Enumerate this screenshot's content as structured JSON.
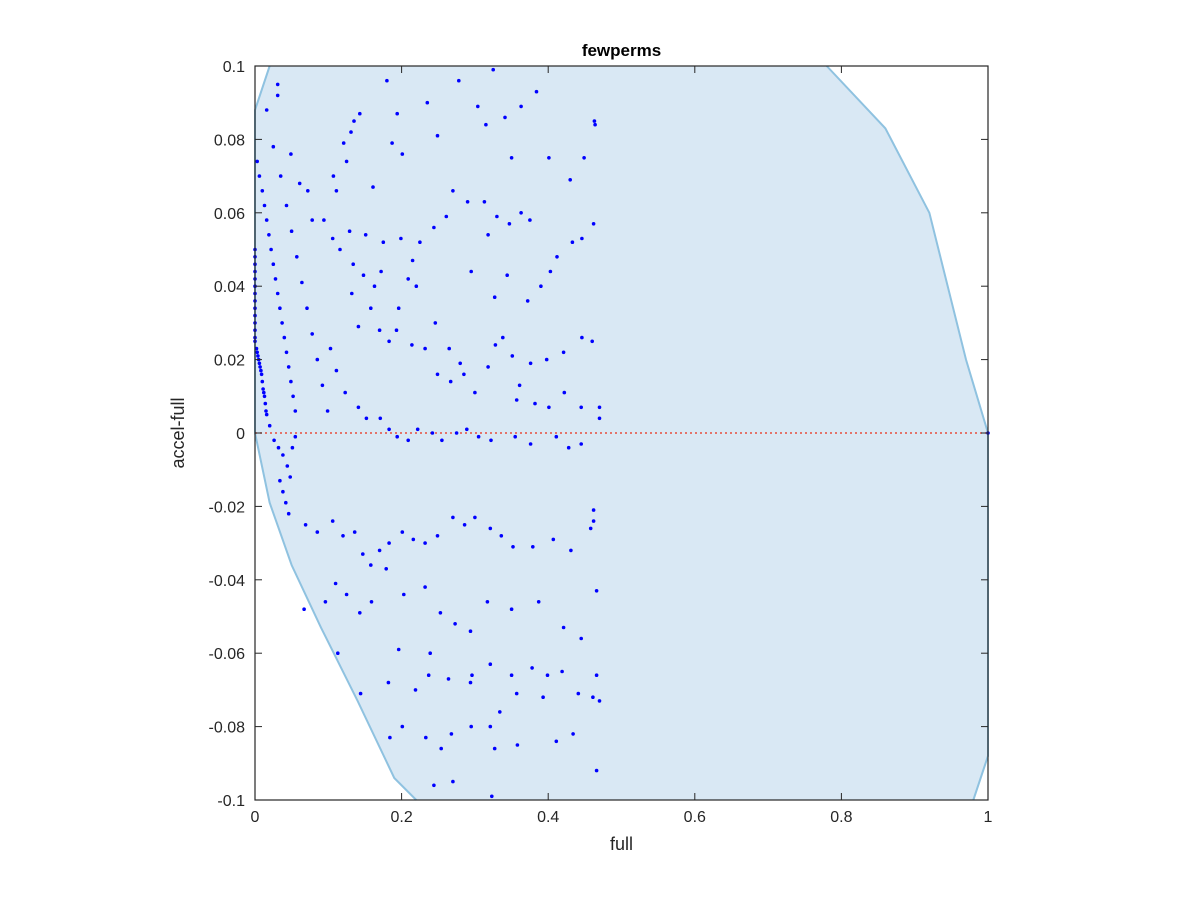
{
  "chart_data": {
    "type": "scatter",
    "title": "fewperms",
    "xlabel": "full",
    "ylabel": "accel-full",
    "xlim": [
      0,
      1
    ],
    "ylim": [
      -0.1,
      0.1
    ],
    "xticks": [
      "0",
      "0.2",
      "0.4",
      "0.6",
      "0.8",
      "1"
    ],
    "xtick_values": [
      0,
      0.2,
      0.4,
      0.6,
      0.8,
      1
    ],
    "yticks": [
      "-0.1",
      "-0.08",
      "-0.06",
      "-0.04",
      "-0.02",
      "0",
      "0.02",
      "0.04",
      "0.06",
      "0.08",
      "0.1"
    ],
    "ytick_values": [
      -0.1,
      -0.08,
      -0.06,
      -0.04,
      -0.02,
      0,
      0.02,
      0.04,
      0.06,
      0.08,
      0.1
    ],
    "grid": false,
    "reference_line": {
      "y": 0,
      "color": "#e74c3c",
      "style": "dotted"
    },
    "region": {
      "fill": "#d9e8f4",
      "edge": "#8fc2e0",
      "left_boundary": [
        [
          0.02,
          0.1
        ],
        [
          0.0,
          0.088
        ],
        [
          0.0,
          0.0
        ],
        [
          0.02,
          -0.019
        ],
        [
          0.05,
          -0.036
        ],
        [
          0.09,
          -0.053
        ],
        [
          0.14,
          -0.073
        ],
        [
          0.19,
          -0.094
        ],
        [
          0.22,
          -0.1
        ]
      ],
      "right_boundary": [
        [
          0.78,
          0.1
        ],
        [
          0.86,
          0.083
        ],
        [
          0.92,
          0.06
        ],
        [
          0.97,
          0.02
        ],
        [
          1.0,
          0.0
        ],
        [
          1.0,
          -0.088
        ],
        [
          0.98,
          -0.1
        ]
      ]
    },
    "point_color": "#0000ff",
    "points": [
      [
        0,
        0.05
      ],
      [
        0,
        0.048
      ],
      [
        0,
        0.046
      ],
      [
        0,
        0.044
      ],
      [
        0,
        0.042
      ],
      [
        0,
        0.04
      ],
      [
        0,
        0.038
      ],
      [
        0,
        0.036
      ],
      [
        0,
        0.034
      ],
      [
        0,
        0.032
      ],
      [
        0,
        0.03
      ],
      [
        0,
        0.028
      ],
      [
        0,
        0.026
      ],
      [
        0,
        0.025
      ],
      [
        0.002,
        0.023
      ],
      [
        0.003,
        0.022
      ],
      [
        0.004,
        0.021
      ],
      [
        0.005,
        0.02
      ],
      [
        0.006,
        0.019
      ],
      [
        0.007,
        0.018
      ],
      [
        0.008,
        0.017
      ],
      [
        0.009,
        0.016
      ],
      [
        0.01,
        0.014
      ],
      [
        0.011,
        0.012
      ],
      [
        0.012,
        0.011
      ],
      [
        0.013,
        0.01
      ],
      [
        0.014,
        0.008
      ],
      [
        0.015,
        0.006
      ],
      [
        0.016,
        0.005
      ],
      [
        0.003,
        0.074
      ],
      [
        0.006,
        0.07
      ],
      [
        0.01,
        0.066
      ],
      [
        0.013,
        0.062
      ],
      [
        0.016,
        0.058
      ],
      [
        0.019,
        0.054
      ],
      [
        0.022,
        0.05
      ],
      [
        0.025,
        0.046
      ],
      [
        0.028,
        0.042
      ],
      [
        0.031,
        0.038
      ],
      [
        0.034,
        0.034
      ],
      [
        0.037,
        0.03
      ],
      [
        0.04,
        0.026
      ],
      [
        0.043,
        0.022
      ],
      [
        0.046,
        0.018
      ],
      [
        0.049,
        0.014
      ],
      [
        0.052,
        0.01
      ],
      [
        0.055,
        0.006
      ],
      [
        0.016,
        0.088
      ],
      [
        0.025,
        0.078
      ],
      [
        0.035,
        0.07
      ],
      [
        0.043,
        0.062
      ],
      [
        0.05,
        0.055
      ],
      [
        0.057,
        0.048
      ],
      [
        0.064,
        0.041
      ],
      [
        0.071,
        0.034
      ],
      [
        0.078,
        0.027
      ],
      [
        0.085,
        0.02
      ],
      [
        0.092,
        0.013
      ],
      [
        0.099,
        0.006
      ],
      [
        0.02,
        0.002
      ],
      [
        0.026,
        -0.002
      ],
      [
        0.032,
        -0.004
      ],
      [
        0.038,
        -0.006
      ],
      [
        0.044,
        -0.009
      ],
      [
        0.048,
        -0.012
      ],
      [
        0.051,
        -0.004
      ],
      [
        0.055,
        -0.001
      ],
      [
        0.034,
        -0.013
      ],
      [
        0.038,
        -0.016
      ],
      [
        0.042,
        -0.019
      ],
      [
        0.046,
        -0.022
      ],
      [
        0.031,
        0.092
      ],
      [
        0.031,
        0.095
      ],
      [
        0.049,
        0.076
      ],
      [
        0.061,
        0.068
      ],
      [
        0.072,
        0.066
      ],
      [
        0.078,
        0.058
      ],
      [
        0.094,
        0.058
      ],
      [
        0.107,
        0.07
      ],
      [
        0.111,
        0.066
      ],
      [
        0.121,
        0.079
      ],
      [
        0.135,
        0.085
      ],
      [
        0.125,
        0.074
      ],
      [
        0.131,
        0.082
      ],
      [
        0.143,
        0.087
      ],
      [
        0.161,
        0.067
      ],
      [
        0.18,
        0.096
      ],
      [
        0.194,
        0.087
      ],
      [
        0.187,
        0.079
      ],
      [
        0.201,
        0.076
      ],
      [
        0.235,
        0.09
      ],
      [
        0.249,
        0.081
      ],
      [
        0.278,
        0.096
      ],
      [
        0.304,
        0.089
      ],
      [
        0.315,
        0.084
      ],
      [
        0.325,
        0.099
      ],
      [
        0.341,
        0.086
      ],
      [
        0.35,
        0.075
      ],
      [
        0.363,
        0.089
      ],
      [
        0.384,
        0.093
      ],
      [
        0.401,
        0.075
      ],
      [
        0.449,
        0.075
      ],
      [
        0.43,
        0.069
      ],
      [
        0.464,
        0.084
      ],
      [
        0.106,
        0.053
      ],
      [
        0.116,
        0.05
      ],
      [
        0.134,
        0.046
      ],
      [
        0.148,
        0.043
      ],
      [
        0.163,
        0.04
      ],
      [
        0.129,
        0.055
      ],
      [
        0.151,
        0.054
      ],
      [
        0.175,
        0.052
      ],
      [
        0.199,
        0.053
      ],
      [
        0.225,
        0.052
      ],
      [
        0.244,
        0.056
      ],
      [
        0.261,
        0.059
      ],
      [
        0.27,
        0.066
      ],
      [
        0.29,
        0.063
      ],
      [
        0.313,
        0.063
      ],
      [
        0.33,
        0.059
      ],
      [
        0.347,
        0.057
      ],
      [
        0.363,
        0.06
      ],
      [
        0.375,
        0.058
      ],
      [
        0.403,
        0.044
      ],
      [
        0.412,
        0.048
      ],
      [
        0.433,
        0.052
      ],
      [
        0.446,
        0.053
      ],
      [
        0.462,
        0.057
      ],
      [
        0.172,
        0.044
      ],
      [
        0.196,
        0.034
      ],
      [
        0.209,
        0.042
      ],
      [
        0.215,
        0.047
      ],
      [
        0.22,
        0.04
      ],
      [
        0.246,
        0.03
      ],
      [
        0.265,
        0.023
      ],
      [
        0.28,
        0.019
      ],
      [
        0.295,
        0.044
      ],
      [
        0.318,
        0.054
      ],
      [
        0.327,
        0.037
      ],
      [
        0.344,
        0.043
      ],
      [
        0.372,
        0.036
      ],
      [
        0.39,
        0.04
      ],
      [
        0.338,
        0.026
      ],
      [
        0.351,
        0.021
      ],
      [
        0.376,
        0.019
      ],
      [
        0.398,
        0.02
      ],
      [
        0.421,
        0.022
      ],
      [
        0.446,
        0.026
      ],
      [
        0.46,
        0.025
      ],
      [
        0.47,
        0.004
      ],
      [
        0.132,
        0.038
      ],
      [
        0.141,
        0.029
      ],
      [
        0.158,
        0.034
      ],
      [
        0.17,
        0.028
      ],
      [
        0.183,
        0.025
      ],
      [
        0.193,
        0.028
      ],
      [
        0.214,
        0.024
      ],
      [
        0.232,
        0.023
      ],
      [
        0.249,
        0.016
      ],
      [
        0.267,
        0.014
      ],
      [
        0.285,
        0.016
      ],
      [
        0.3,
        0.011
      ],
      [
        0.318,
        0.018
      ],
      [
        0.328,
        0.024
      ],
      [
        0.357,
        0.009
      ],
      [
        0.361,
        0.013
      ],
      [
        0.382,
        0.008
      ],
      [
        0.401,
        0.007
      ],
      [
        0.422,
        0.011
      ],
      [
        0.445,
        0.007
      ],
      [
        0.47,
        0.007
      ],
      [
        0.103,
        0.023
      ],
      [
        0.111,
        0.017
      ],
      [
        0.123,
        0.011
      ],
      [
        0.141,
        0.007
      ],
      [
        0.152,
        0.004
      ],
      [
        0.171,
        0.004
      ],
      [
        0.183,
        0.001
      ],
      [
        0.194,
        -0.001
      ],
      [
        0.209,
        -0.002
      ],
      [
        0.222,
        0.001
      ],
      [
        0.242,
        0.0
      ],
      [
        0.255,
        -0.002
      ],
      [
        0.275,
        0.0
      ],
      [
        0.289,
        0.001
      ],
      [
        0.305,
        -0.001
      ],
      [
        0.322,
        -0.002
      ],
      [
        0.355,
        -0.001
      ],
      [
        0.376,
        -0.003
      ],
      [
        0.411,
        -0.001
      ],
      [
        0.428,
        -0.004
      ],
      [
        0.445,
        -0.003
      ],
      [
        0.069,
        -0.025
      ],
      [
        0.085,
        -0.027
      ],
      [
        0.106,
        -0.024
      ],
      [
        0.12,
        -0.028
      ],
      [
        0.136,
        -0.027
      ],
      [
        0.147,
        -0.033
      ],
      [
        0.158,
        -0.036
      ],
      [
        0.17,
        -0.032
      ],
      [
        0.183,
        -0.03
      ],
      [
        0.201,
        -0.027
      ],
      [
        0.216,
        -0.029
      ],
      [
        0.232,
        -0.03
      ],
      [
        0.249,
        -0.028
      ],
      [
        0.27,
        -0.023
      ],
      [
        0.286,
        -0.025
      ],
      [
        0.3,
        -0.023
      ],
      [
        0.321,
        -0.026
      ],
      [
        0.336,
        -0.028
      ],
      [
        0.352,
        -0.031
      ],
      [
        0.379,
        -0.031
      ],
      [
        0.407,
        -0.029
      ],
      [
        0.431,
        -0.032
      ],
      [
        0.458,
        -0.026
      ],
      [
        0.067,
        -0.048
      ],
      [
        0.096,
        -0.046
      ],
      [
        0.11,
        -0.041
      ],
      [
        0.125,
        -0.044
      ],
      [
        0.143,
        -0.049
      ],
      [
        0.159,
        -0.046
      ],
      [
        0.179,
        -0.037
      ],
      [
        0.203,
        -0.044
      ],
      [
        0.232,
        -0.042
      ],
      [
        0.253,
        -0.049
      ],
      [
        0.273,
        -0.052
      ],
      [
        0.294,
        -0.054
      ],
      [
        0.317,
        -0.046
      ],
      [
        0.35,
        -0.048
      ],
      [
        0.387,
        -0.046
      ],
      [
        0.421,
        -0.053
      ],
      [
        0.445,
        -0.056
      ],
      [
        0.466,
        -0.043
      ],
      [
        0.113,
        -0.06
      ],
      [
        0.196,
        -0.059
      ],
      [
        0.239,
        -0.06
      ],
      [
        0.294,
        -0.068
      ],
      [
        0.321,
        -0.063
      ],
      [
        0.35,
        -0.066
      ],
      [
        0.378,
        -0.064
      ],
      [
        0.399,
        -0.066
      ],
      [
        0.419,
        -0.065
      ],
      [
        0.466,
        -0.066
      ],
      [
        0.47,
        -0.073
      ],
      [
        0.144,
        -0.071
      ],
      [
        0.182,
        -0.068
      ],
      [
        0.219,
        -0.07
      ],
      [
        0.237,
        -0.066
      ],
      [
        0.264,
        -0.067
      ],
      [
        0.296,
        -0.066
      ],
      [
        0.321,
        -0.08
      ],
      [
        0.334,
        -0.076
      ],
      [
        0.357,
        -0.071
      ],
      [
        0.393,
        -0.072
      ],
      [
        0.441,
        -0.071
      ],
      [
        0.461,
        -0.072
      ],
      [
        0.184,
        -0.083
      ],
      [
        0.201,
        -0.08
      ],
      [
        0.233,
        -0.083
      ],
      [
        0.254,
        -0.086
      ],
      [
        0.268,
        -0.082
      ],
      [
        0.295,
        -0.08
      ],
      [
        0.327,
        -0.086
      ],
      [
        0.358,
        -0.085
      ],
      [
        0.411,
        -0.084
      ],
      [
        0.434,
        -0.082
      ],
      [
        0.466,
        -0.092
      ],
      [
        0.244,
        -0.096
      ],
      [
        0.27,
        -0.095
      ],
      [
        0.323,
        -0.099
      ],
      [
        0.463,
        0.085
      ],
      [
        0.462,
        -0.021
      ],
      [
        0.462,
        -0.024
      ],
      [
        1.0,
        0.0
      ]
    ]
  }
}
